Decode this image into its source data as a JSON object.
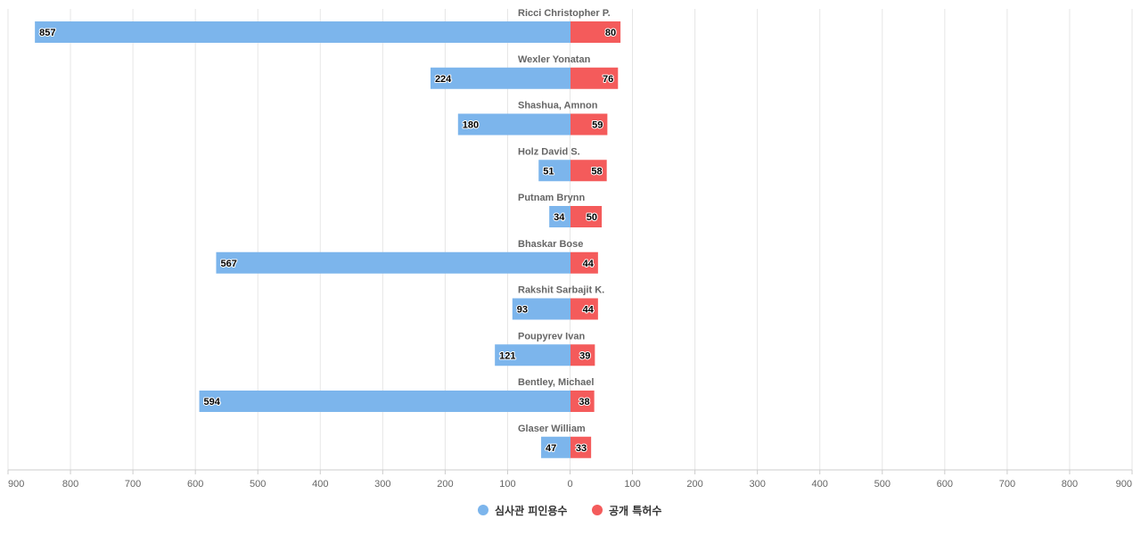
{
  "chart_data": {
    "type": "bar",
    "orientation": "horizontal-diverging",
    "categories": [
      "Ricci Christopher P.",
      "Wexler Yonatan",
      "Shashua, Amnon",
      "Holz David S.",
      "Putnam Brynn",
      "Bhaskar Bose",
      "Rakshit Sarbajit K.",
      "Poupyrev Ivan",
      "Bentley, Michael",
      "Glaser William"
    ],
    "series": [
      {
        "name": "심사관 피인용수",
        "color": "#7cb5ec",
        "direction": "left",
        "values": [
          857,
          224,
          180,
          51,
          34,
          567,
          93,
          121,
          594,
          47
        ]
      },
      {
        "name": "공개 특허수",
        "color": "#f45b5b",
        "direction": "right",
        "values": [
          80,
          76,
          59,
          58,
          50,
          44,
          44,
          39,
          38,
          33
        ]
      }
    ],
    "xlim": [
      -900,
      900
    ],
    "x_ticks": [
      "900",
      "800",
      "700",
      "600",
      "500",
      "400",
      "300",
      "200",
      "100",
      "0",
      "100",
      "200",
      "300",
      "400",
      "500",
      "600",
      "700",
      "800",
      "900"
    ],
    "grid": true,
    "legend_position": "bottom-center"
  }
}
